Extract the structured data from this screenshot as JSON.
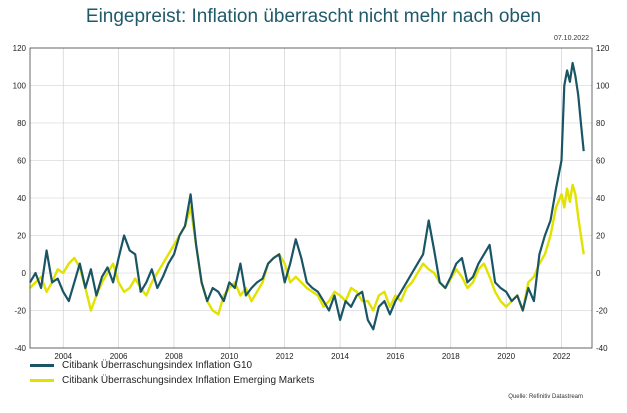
{
  "title": "Eingepreist: Inflation überrascht nicht mehr nach oben",
  "date": "07.10.2022",
  "source": "Quelle: Refinitiv Datastream",
  "chart_data": {
    "type": "line",
    "title": "Eingepreist: Inflation überrascht nicht mehr nach oben",
    "xlabel": "",
    "ylabel": "",
    "xlim": [
      2002.8,
      2023.1
    ],
    "ylim": [
      -40,
      120
    ],
    "y_ticks": [
      -40,
      -20,
      0,
      20,
      40,
      60,
      80,
      100,
      120
    ],
    "x_ticks": [
      2004,
      2006,
      2008,
      2010,
      2012,
      2014,
      2016,
      2018,
      2020,
      2022
    ],
    "x_tick_labels": [
      "2004",
      "2006",
      "2008",
      "2010",
      "2012",
      "2014",
      "2016",
      "2018",
      "2020",
      "2022"
    ],
    "grid": true,
    "legend_position": "bottom-left",
    "series": [
      {
        "name": "Citibank Überraschungsindex Inflation G10",
        "color": "#1a5566",
        "x": [
          2002.8,
          2003.0,
          2003.2,
          2003.4,
          2003.6,
          2003.8,
          2004.0,
          2004.2,
          2004.4,
          2004.6,
          2004.8,
          2005.0,
          2005.2,
          2005.4,
          2005.6,
          2005.8,
          2006.0,
          2006.2,
          2006.4,
          2006.6,
          2006.8,
          2007.0,
          2007.2,
          2007.4,
          2007.6,
          2007.8,
          2008.0,
          2008.2,
          2008.4,
          2008.6,
          2008.8,
          2009.0,
          2009.2,
          2009.4,
          2009.6,
          2009.8,
          2010.0,
          2010.2,
          2010.4,
          2010.6,
          2010.8,
          2011.0,
          2011.2,
          2011.4,
          2011.6,
          2011.8,
          2012.0,
          2012.2,
          2012.4,
          2012.6,
          2012.8,
          2013.0,
          2013.2,
          2013.4,
          2013.6,
          2013.8,
          2014.0,
          2014.2,
          2014.4,
          2014.6,
          2014.8,
          2015.0,
          2015.2,
          2015.4,
          2015.6,
          2015.8,
          2016.0,
          2016.2,
          2016.4,
          2016.6,
          2016.8,
          2017.0,
          2017.2,
          2017.4,
          2017.6,
          2017.8,
          2018.0,
          2018.2,
          2018.4,
          2018.6,
          2018.8,
          2019.0,
          2019.2,
          2019.4,
          2019.6,
          2019.8,
          2020.0,
          2020.2,
          2020.4,
          2020.6,
          2020.8,
          2021.0,
          2021.2,
          2021.4,
          2021.6,
          2021.8,
          2022.0,
          2022.1,
          2022.2,
          2022.3,
          2022.4,
          2022.5,
          2022.6,
          2022.7,
          2022.8
        ],
        "y": [
          -5,
          0,
          -8,
          12,
          -5,
          -3,
          -10,
          -15,
          -5,
          5,
          -8,
          2,
          -12,
          -2,
          3,
          -5,
          8,
          20,
          12,
          10,
          -10,
          -5,
          2,
          -8,
          -2,
          5,
          10,
          20,
          25,
          42,
          15,
          -5,
          -15,
          -8,
          -10,
          -15,
          -5,
          -8,
          5,
          -12,
          -8,
          -5,
          -3,
          5,
          8,
          10,
          -5,
          5,
          18,
          8,
          -5,
          -8,
          -10,
          -15,
          -20,
          -12,
          -25,
          -15,
          -18,
          -12,
          -10,
          -25,
          -30,
          -18,
          -15,
          -22,
          -15,
          -10,
          -5,
          0,
          5,
          10,
          28,
          12,
          -5,
          -8,
          -2,
          5,
          8,
          -5,
          -2,
          5,
          10,
          15,
          -5,
          -8,
          -10,
          -15,
          -12,
          -20,
          -8,
          -15,
          10,
          20,
          28,
          45,
          60,
          100,
          108,
          102,
          112,
          105,
          95,
          80,
          65
        ]
      },
      {
        "name": "Citibank Überraschungsindex Inflation Emerging Markets",
        "color": "#e2e200",
        "x": [
          2002.8,
          2003.0,
          2003.2,
          2003.4,
          2003.6,
          2003.8,
          2004.0,
          2004.2,
          2004.4,
          2004.6,
          2004.8,
          2005.0,
          2005.2,
          2005.4,
          2005.6,
          2005.8,
          2006.0,
          2006.2,
          2006.4,
          2006.6,
          2006.8,
          2007.0,
          2007.2,
          2007.4,
          2007.6,
          2007.8,
          2008.0,
          2008.2,
          2008.4,
          2008.6,
          2008.8,
          2009.0,
          2009.2,
          2009.4,
          2009.6,
          2009.8,
          2010.0,
          2010.2,
          2010.4,
          2010.6,
          2010.8,
          2011.0,
          2011.2,
          2011.4,
          2011.6,
          2011.8,
          2012.0,
          2012.2,
          2012.4,
          2012.6,
          2012.8,
          2013.0,
          2013.2,
          2013.4,
          2013.6,
          2013.8,
          2014.0,
          2014.2,
          2014.4,
          2014.6,
          2014.8,
          2015.0,
          2015.2,
          2015.4,
          2015.6,
          2015.8,
          2016.0,
          2016.2,
          2016.4,
          2016.6,
          2016.8,
          2017.0,
          2017.2,
          2017.4,
          2017.6,
          2017.8,
          2018.0,
          2018.2,
          2018.4,
          2018.6,
          2018.8,
          2019.0,
          2019.2,
          2019.4,
          2019.6,
          2019.8,
          2020.0,
          2020.2,
          2020.4,
          2020.6,
          2020.8,
          2021.0,
          2021.2,
          2021.4,
          2021.6,
          2021.8,
          2022.0,
          2022.1,
          2022.2,
          2022.3,
          2022.4,
          2022.5,
          2022.6,
          2022.7,
          2022.8
        ],
        "y": [
          -8,
          -5,
          -2,
          -10,
          -5,
          2,
          0,
          5,
          8,
          3,
          -8,
          -20,
          -12,
          -5,
          0,
          5,
          -5,
          -10,
          -8,
          -3,
          -8,
          -12,
          -5,
          0,
          5,
          10,
          15,
          20,
          25,
          35,
          15,
          -5,
          -15,
          -20,
          -22,
          -12,
          -8,
          -5,
          -12,
          -8,
          -15,
          -10,
          -5,
          5,
          8,
          10,
          5,
          -5,
          -2,
          -5,
          -8,
          -10,
          -12,
          -18,
          -15,
          -10,
          -12,
          -15,
          -8,
          -10,
          -15,
          -15,
          -20,
          -12,
          -10,
          -18,
          -12,
          -15,
          -8,
          -5,
          0,
          5,
          2,
          0,
          -5,
          -8,
          -3,
          2,
          -2,
          -8,
          -5,
          2,
          5,
          -2,
          -10,
          -15,
          -18,
          -15,
          -12,
          -20,
          -5,
          -2,
          5,
          10,
          20,
          35,
          42,
          35,
          45,
          38,
          47,
          42,
          30,
          20,
          10
        ]
      }
    ]
  },
  "legend": {
    "entries": [
      {
        "label": "Citibank Überraschungsindex Inflation G10",
        "color": "#1a5566"
      },
      {
        "label": "Citibank Überraschungsindex Inflation Emerging Markets",
        "color": "#e2e200"
      }
    ]
  }
}
